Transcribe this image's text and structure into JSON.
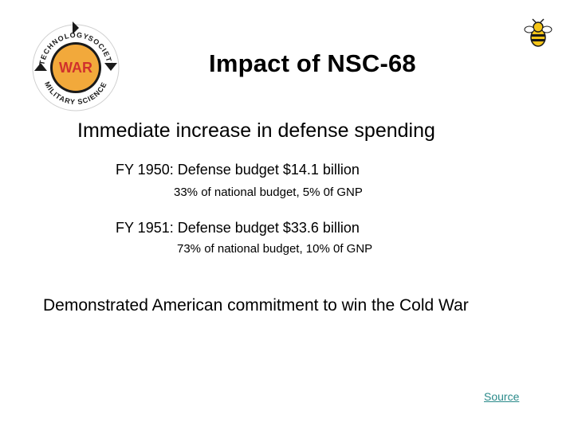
{
  "logo": {
    "center_text": "WAR",
    "ring_top_left": "TECHNOLOGY",
    "ring_top_right": "SOCIETY",
    "ring_bottom": "MILITARY SCIENCE",
    "colors": {
      "disc": "#f2a93b",
      "ring": "#1a1a1a",
      "arrows": "#1a1a1a",
      "text": "#d0312d"
    }
  },
  "mascot": {
    "icon": "yellow-jacket-bee-icon"
  },
  "slide": {
    "title": "Impact of NSC-68",
    "main_point": "Immediate increase in defense spending",
    "fy1950": {
      "line": "FY 1950: Defense budget $14.1 billion",
      "detail": "33% of national budget,  5% 0f GNP"
    },
    "fy1951": {
      "line": "FY 1951: Defense budget $33.6 billion",
      "detail": "73% of national budget,  10% 0f GNP"
    },
    "conclusion": "Demonstrated American commitment to win the Cold War",
    "source_link": "Source"
  }
}
